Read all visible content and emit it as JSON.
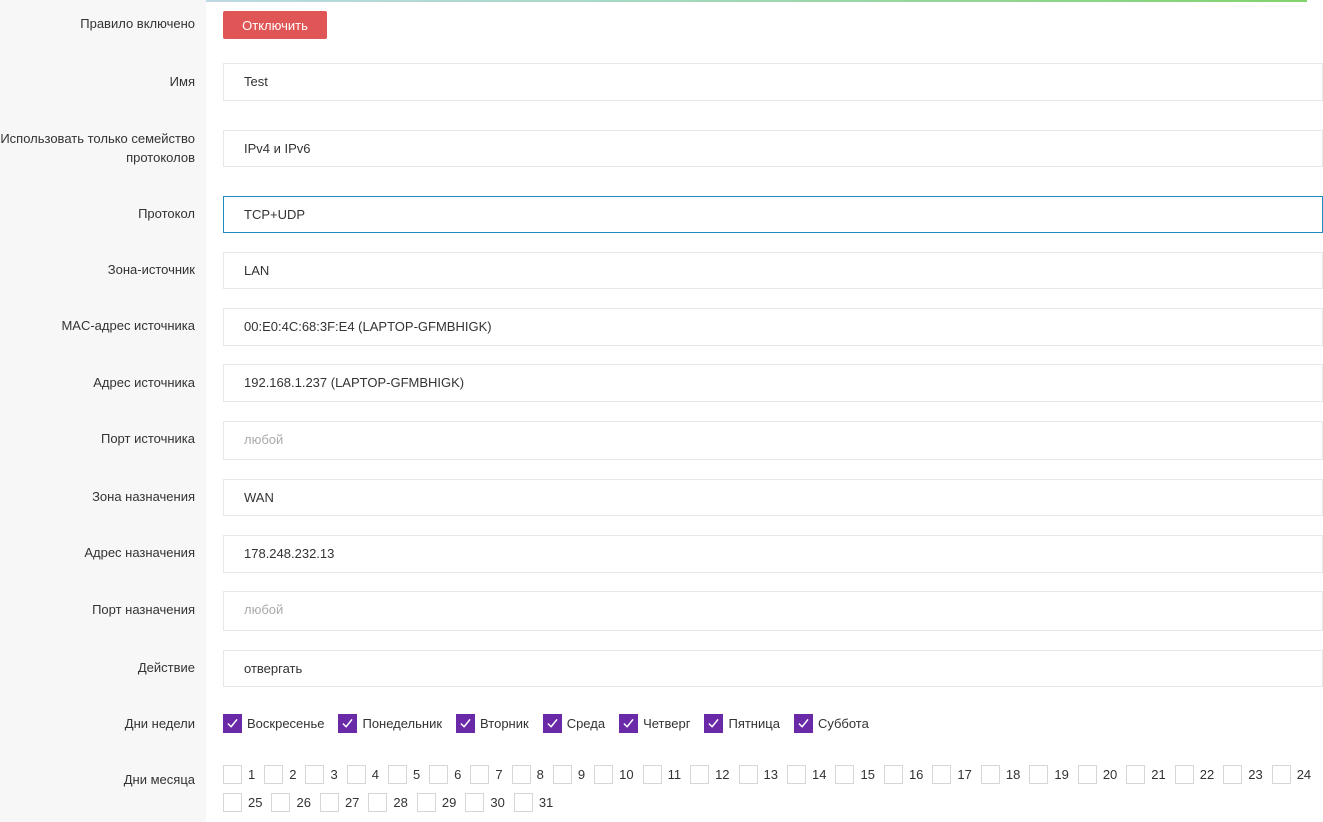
{
  "rule_enabled": {
    "label": "Правило включено",
    "button": "Отключить"
  },
  "fields": [
    {
      "id": "name",
      "label": "Имя",
      "value": "Test",
      "placeholder": ""
    },
    {
      "id": "family",
      "label": "Использовать только семейство протоколов",
      "value": "IPv4 и IPv6",
      "placeholder": ""
    },
    {
      "id": "protocol",
      "label": "Протокол",
      "value": "TCP+UDP",
      "placeholder": ""
    },
    {
      "id": "src-zone",
      "label": "Зона-источник",
      "value": "LAN",
      "placeholder": ""
    },
    {
      "id": "src-mac",
      "label": "MAC-адрес источника",
      "value": "00:E0:4C:68:3F:E4 (LAPTOP-GFMBHIGK)",
      "placeholder": ""
    },
    {
      "id": "src-ip",
      "label": "Адрес источника",
      "value": "192.168.1.237 (LAPTOP-GFMBHIGK)",
      "placeholder": ""
    },
    {
      "id": "src-port",
      "label": "Порт источника",
      "value": "",
      "placeholder": "любой"
    },
    {
      "id": "dest-zone",
      "label": "Зона назначения",
      "value": "WAN",
      "placeholder": ""
    },
    {
      "id": "dest-ip",
      "label": "Адрес назначения",
      "value": "178.248.232.13",
      "placeholder": ""
    },
    {
      "id": "dest-port",
      "label": "Порт назначения",
      "value": "",
      "placeholder": "любой"
    },
    {
      "id": "action",
      "label": "Действие",
      "value": "отвергать",
      "placeholder": ""
    }
  ],
  "weekdays": {
    "label": "Дни недели",
    "items": [
      {
        "name": "Воскресенье",
        "checked": true
      },
      {
        "name": "Понедельник",
        "checked": true
      },
      {
        "name": "Вторник",
        "checked": true
      },
      {
        "name": "Среда",
        "checked": true
      },
      {
        "name": "Четверг",
        "checked": true
      },
      {
        "name": "Пятница",
        "checked": true
      },
      {
        "name": "Суббота",
        "checked": true
      }
    ]
  },
  "monthdays": {
    "label": "Дни месяца",
    "items": [
      "1",
      "2",
      "3",
      "4",
      "5",
      "6",
      "7",
      "8",
      "9",
      "10",
      "11",
      "12",
      "13",
      "14",
      "15",
      "16",
      "17",
      "18",
      "19",
      "20",
      "21",
      "22",
      "23",
      "24",
      "25",
      "26",
      "27",
      "28",
      "29",
      "30",
      "31"
    ]
  },
  "colors": {
    "accent": "#6a2aa8",
    "danger": "#e05555",
    "focus": "#1e8bc3"
  },
  "icons": {
    "checkmark": "check-icon"
  }
}
